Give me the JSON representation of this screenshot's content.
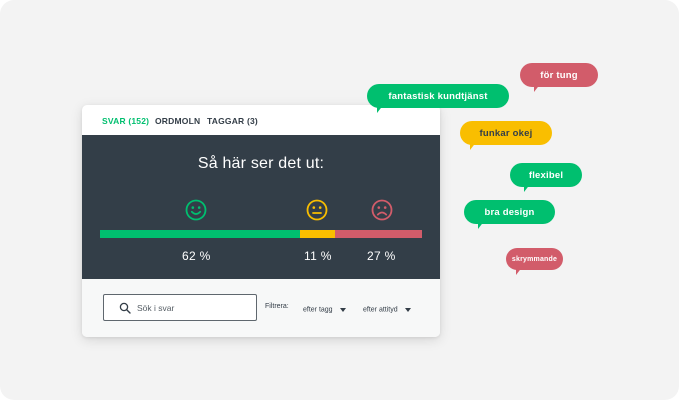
{
  "tabs": [
    {
      "label": "SVAR (152)",
      "active": true
    },
    {
      "label": "ORDMOLN",
      "active": false
    },
    {
      "label": "TAGGAR (3)",
      "active": false
    }
  ],
  "summary": {
    "title": "Så här ser det ut:",
    "positive": {
      "percent": 62,
      "label": "62 %",
      "icon": "smiley-happy-icon",
      "color": "#00bf6f"
    },
    "neutral": {
      "percent": 11,
      "label": "11 %",
      "icon": "smiley-neutral-icon",
      "color": "#f9be00"
    },
    "negative": {
      "percent": 27,
      "label": "27 %",
      "icon": "smiley-sad-icon",
      "color": "#d25c6a"
    }
  },
  "search": {
    "placeholder": "Sök i svar",
    "value": "",
    "icon": "search-icon"
  },
  "filters": {
    "label": "Filtrera:",
    "tag_dropdown": "efter tagg",
    "attitude_dropdown": "efter attityd"
  },
  "bubbles": [
    {
      "text": "fantastisk kundtjänst",
      "color": "#00bf6f"
    },
    {
      "text": "för tung",
      "color": "#d25c6a"
    },
    {
      "text": "funkar okej",
      "color": "#f9be00"
    },
    {
      "text": "flexibel",
      "color": "#00bf6f"
    },
    {
      "text": "bra design",
      "color": "#00bf6f"
    },
    {
      "text": "skrymmande",
      "color": "#d25c6a"
    }
  ],
  "colors": {
    "panel": "#333e48",
    "accent": "#00bf6f"
  }
}
